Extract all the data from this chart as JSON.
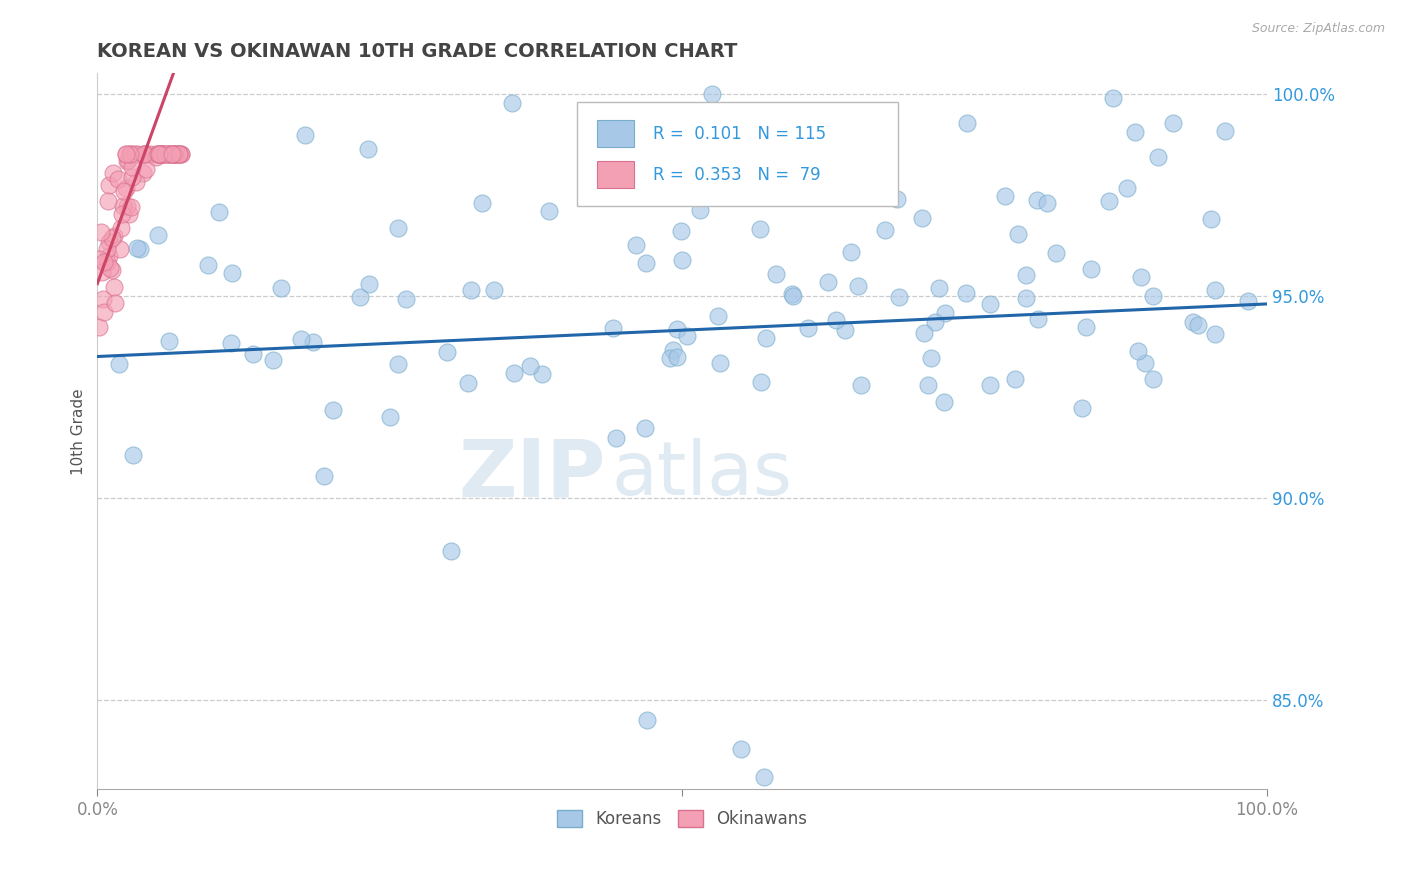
{
  "title": "KOREAN VS OKINAWAN 10TH GRADE CORRELATION CHART",
  "source_text": "Source: ZipAtlas.com",
  "ylabel": "10th Grade",
  "r_korean": 0.101,
  "n_korean": 115,
  "r_okinawan": 0.353,
  "n_okinawan": 79,
  "korean_color": "#a8c8e8",
  "korean_edge_color": "#7aadcc",
  "okinawan_color": "#f4a0b4",
  "okinawan_edge_color": "#d97090",
  "korean_line_color": "#2266aa",
  "okinawan_line_color": "#cc4466",
  "title_color": "#444444",
  "axis_color": "#3399dd",
  "grid_color": "#cccccc",
  "xlim": [
    0.0,
    1.0
  ],
  "ylim": [
    0.828,
    1.005
  ],
  "right_yticks": [
    0.85,
    0.9,
    0.95,
    1.0
  ],
  "right_yticklabels": [
    "85.0%",
    "90.0%",
    "95.0%",
    "100.0%"
  ],
  "xtick_labels": [
    "0.0%",
    "100.0%"
  ],
  "watermark_zip": "ZIP",
  "watermark_atlas": "atlas",
  "korean_seed": 12345,
  "okinawan_seed": 67890
}
